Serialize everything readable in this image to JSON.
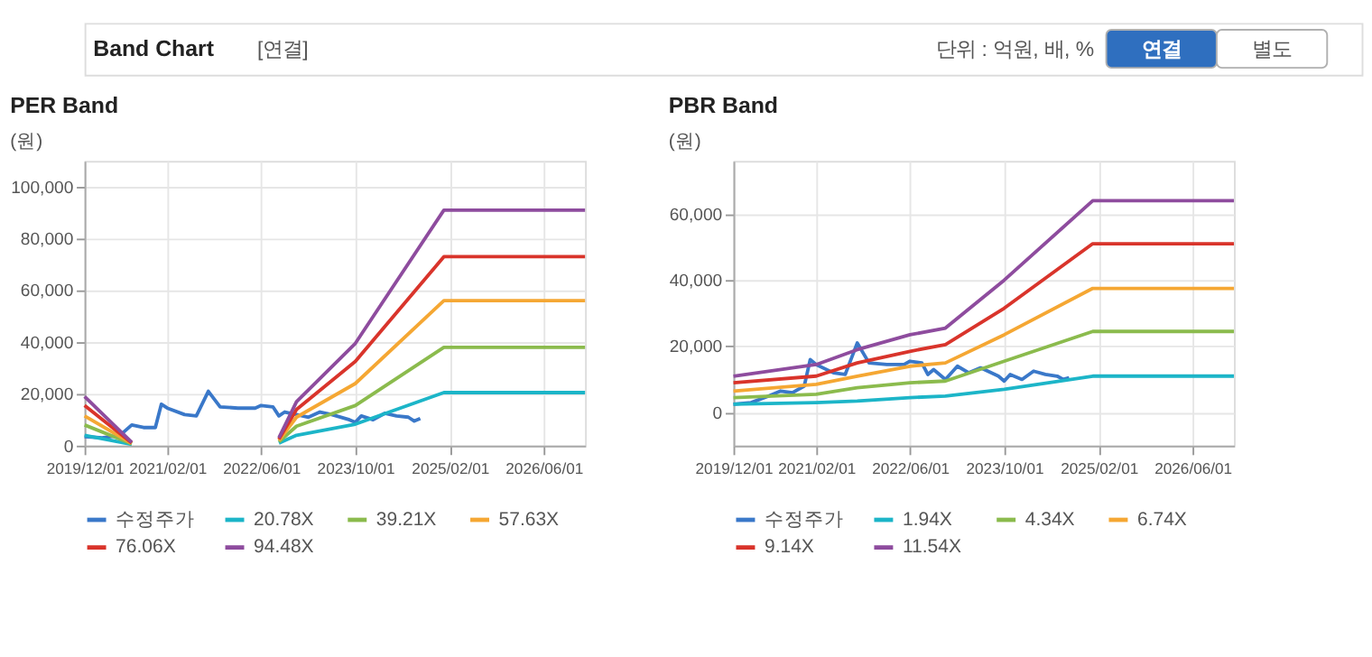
{
  "chart_data": [
    {
      "type": "other",
      "annotations": [
        "Band Chart",
        "[연결]",
        "단위 : 억원, 배, %",
        "연결",
        "별도"
      ]
    },
    {
      "type": "line",
      "title": "PER Band",
      "ylabel": "(원)",
      "legend": "bottom",
      "grid": true,
      "xlim": [
        "2019-12-01",
        "2027-01-01"
      ],
      "ylim": [
        0,
        110000
      ],
      "xticks": [
        {
          "value": "2019-12-01",
          "label": "2019/12/01"
        },
        {
          "value": "2021-02-01",
          "label": "2021/02/01"
        },
        {
          "value": "2022-06-01",
          "label": "2022/06/01"
        },
        {
          "value": "2023-10-01",
          "label": "2023/10/01"
        },
        {
          "value": "2025-02-01",
          "label": "2025/02/01"
        },
        {
          "value": "2026-06-01",
          "label": "2026/06/01"
        }
      ],
      "yticks": [
        0,
        {
          "value": 20000,
          "label": "20,000"
        },
        {
          "value": 40000,
          "label": "40,000"
        },
        {
          "value": 60000,
          "label": "60,000"
        },
        {
          "value": 80000,
          "label": "80,000"
        },
        {
          "value": 100000,
          "label": "100,000"
        }
      ],
      "series": [
        {
          "name": "수정주가",
          "color": "#3a78c9",
          "x": [
            "2019-12",
            "2020-03",
            "2020-06",
            "2020-08",
            "2020-10",
            "2020-12",
            "2021-01",
            "2021-02",
            "2021-05",
            "2021-07",
            "2021-09",
            "2021-11",
            "2022-02",
            "2022-05",
            "2022-06",
            "2022-08",
            "2022-09",
            "2022-10",
            "2022-12",
            "2023-02",
            "2023-04",
            "2023-06",
            "2023-09",
            "2023-10",
            "2023-11",
            "2024-01",
            "2024-03",
            "2024-05",
            "2024-07",
            "2024-08",
            "2024-09"
          ],
          "values": [
            3500,
            3000,
            4000,
            8000,
            7000,
            7000,
            16000,
            14500,
            12000,
            11500,
            21000,
            15000,
            14500,
            14500,
            15500,
            15000,
            11500,
            13000,
            12000,
            11000,
            13000,
            12000,
            10000,
            9000,
            11500,
            10000,
            12500,
            11500,
            11000,
            9500,
            10500
          ]
        },
        {
          "name": "20.78X",
          "color": "#1cb5c8",
          "x": [
            "2019-12",
            "2020-08",
            "2021-08",
            "2022-09",
            "2022-12",
            "2023-10",
            "2025-01",
            "2027-01"
          ],
          "values": [
            4000,
            500,
            null,
            1000,
            4000,
            8300,
            20500,
            20500
          ]
        },
        {
          "name": "39.21X",
          "color": "#8bbb4d",
          "x": [
            "2019-12",
            "2020-08",
            "2021-08",
            "2022-09",
            "2022-12",
            "2023-10",
            "2025-01",
            "2027-01"
          ],
          "values": [
            8000,
            700,
            null,
            1500,
            7500,
            15500,
            38000,
            38000
          ]
        },
        {
          "name": "57.63X",
          "color": "#f5a733",
          "x": [
            "2019-12",
            "2020-08",
            "2021-08",
            "2022-09",
            "2022-12",
            "2023-10",
            "2025-01",
            "2027-01"
          ],
          "values": [
            11500,
            900,
            null,
            2000,
            11000,
            24000,
            56000,
            56000
          ]
        },
        {
          "name": "76.06X",
          "color": "#d9342b",
          "x": [
            "2019-12",
            "2020-08",
            "2021-08",
            "2022-09",
            "2022-12",
            "2023-10",
            "2025-01",
            "2027-01"
          ],
          "values": [
            15500,
            1100,
            null,
            2500,
            14000,
            32500,
            73000,
            73000
          ]
        },
        {
          "name": "94.48X",
          "color": "#8e4c9e",
          "x": [
            "2019-12",
            "2020-08",
            "2021-08",
            "2022-09",
            "2022-12",
            "2023-10",
            "2025-01",
            "2027-01"
          ],
          "values": [
            19000,
            1300,
            null,
            3000,
            17000,
            39500,
            91000,
            91000
          ]
        }
      ]
    },
    {
      "type": "line",
      "title": "PBR Band",
      "ylabel": "(원)",
      "legend": "bottom",
      "grid": true,
      "xlim": [
        "2019-12-01",
        "2027-01-01"
      ],
      "ylim": [
        -10000,
        76000
      ],
      "xticks": [
        {
          "value": "2019-12-01",
          "label": "2019/12/01"
        },
        {
          "value": "2021-02-01",
          "label": "2021/02/01"
        },
        {
          "value": "2022-06-01",
          "label": "2022/06/01"
        },
        {
          "value": "2023-10-01",
          "label": "2023/10/01"
        },
        {
          "value": "2025-02-01",
          "label": "2025/02/01"
        },
        {
          "value": "2026-06-01",
          "label": "2026/06/01"
        }
      ],
      "yticks": [
        0,
        {
          "value": 20000,
          "label": "20,000"
        },
        {
          "value": 40000,
          "label": "40,000"
        },
        {
          "value": 60000,
          "label": "60,000"
        }
      ],
      "series": [
        {
          "name": "수정주가",
          "color": "#3a78c9",
          "x": [
            "2019-12",
            "2020-03",
            "2020-06",
            "2020-08",
            "2020-10",
            "2020-12",
            "2021-01",
            "2021-02",
            "2021-05",
            "2021-07",
            "2021-09",
            "2021-11",
            "2022-02",
            "2022-05",
            "2022-06",
            "2022-08",
            "2022-09",
            "2022-10",
            "2022-12",
            "2023-02",
            "2023-04",
            "2023-06",
            "2023-09",
            "2023-10",
            "2023-11",
            "2024-01",
            "2024-03",
            "2024-05",
            "2024-07",
            "2024-08",
            "2024-09"
          ],
          "values": [
            2500,
            3000,
            5000,
            6500,
            6000,
            8000,
            16000,
            14500,
            12000,
            11500,
            21000,
            15000,
            14500,
            14500,
            15500,
            15000,
            11500,
            13000,
            10000,
            14000,
            12000,
            13500,
            11000,
            9500,
            11500,
            10000,
            12500,
            11500,
            11000,
            10000,
            10500
          ]
        },
        {
          "name": "1.94X",
          "color": "#1cb5c8",
          "x": [
            "2019-12",
            "2021-02",
            "2021-09",
            "2022-06",
            "2022-12",
            "2023-10",
            "2025-01",
            "2027-01"
          ],
          "values": [
            2500,
            3000,
            3500,
            4500,
            5000,
            7000,
            11000,
            11000
          ]
        },
        {
          "name": "4.34X",
          "color": "#8bbb4d",
          "x": [
            "2019-12",
            "2021-02",
            "2021-09",
            "2022-06",
            "2022-12",
            "2023-10",
            "2025-01",
            "2027-01"
          ],
          "values": [
            4500,
            5500,
            7500,
            9000,
            9500,
            15500,
            24500,
            24500
          ]
        },
        {
          "name": "6.74X",
          "color": "#f5a733",
          "x": [
            "2019-12",
            "2021-02",
            "2021-09",
            "2022-06",
            "2022-12",
            "2023-10",
            "2025-01",
            "2027-01"
          ],
          "values": [
            6500,
            8500,
            11000,
            14000,
            15000,
            23500,
            37500,
            37500
          ]
        },
        {
          "name": "9.14X",
          "color": "#d9342b",
          "x": [
            "2019-12",
            "2021-02",
            "2021-09",
            "2022-06",
            "2022-12",
            "2023-10",
            "2025-01",
            "2027-01"
          ],
          "values": [
            9000,
            11000,
            15000,
            18500,
            20500,
            31500,
            51000,
            51000
          ]
        },
        {
          "name": "11.54X",
          "color": "#8e4c9e",
          "x": [
            "2019-12",
            "2021-02",
            "2021-09",
            "2022-06",
            "2022-12",
            "2023-10",
            "2025-01",
            "2027-01"
          ],
          "values": [
            11000,
            14500,
            19000,
            23500,
            25500,
            40000,
            64000,
            64000
          ]
        }
      ]
    }
  ]
}
